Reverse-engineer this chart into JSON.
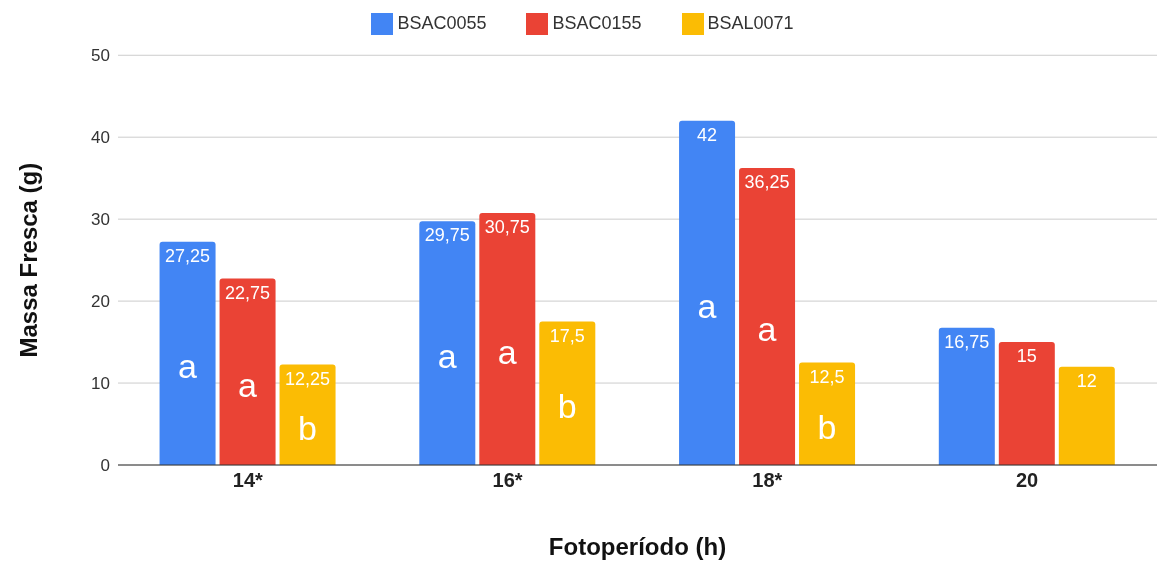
{
  "chart_data": {
    "type": "bar",
    "xlabel": "Fotoperíodo (h)",
    "ylabel": "Massa Fresca (g)",
    "categories": [
      "14*",
      "16*",
      "18*",
      "20"
    ],
    "series": [
      {
        "name": "BSAC0055",
        "color": "#4285f4",
        "values": [
          27.25,
          29.75,
          42,
          16.75
        ],
        "value_labels": [
          "27,25",
          "29,75",
          "42",
          "16,75"
        ]
      },
      {
        "name": "BSAC0155",
        "color": "#ea4335",
        "values": [
          22.75,
          30.75,
          36.25,
          15
        ],
        "value_labels": [
          "22,75",
          "30,75",
          "36,25",
          "15"
        ]
      },
      {
        "name": "BSAL0071",
        "color": "#fbbc04",
        "values": [
          12.25,
          17.5,
          12.5,
          12
        ],
        "value_labels": [
          "12,25",
          "17,5",
          "12,5",
          "12"
        ]
      }
    ],
    "annotations": [
      "a",
      "a",
      "b",
      "a",
      "a",
      "b",
      "a",
      "a",
      "b"
    ],
    "ylim": [
      0,
      50
    ],
    "yticks": [
      0,
      10,
      20,
      30,
      40,
      50
    ],
    "grid": "y",
    "legend": "top"
  }
}
